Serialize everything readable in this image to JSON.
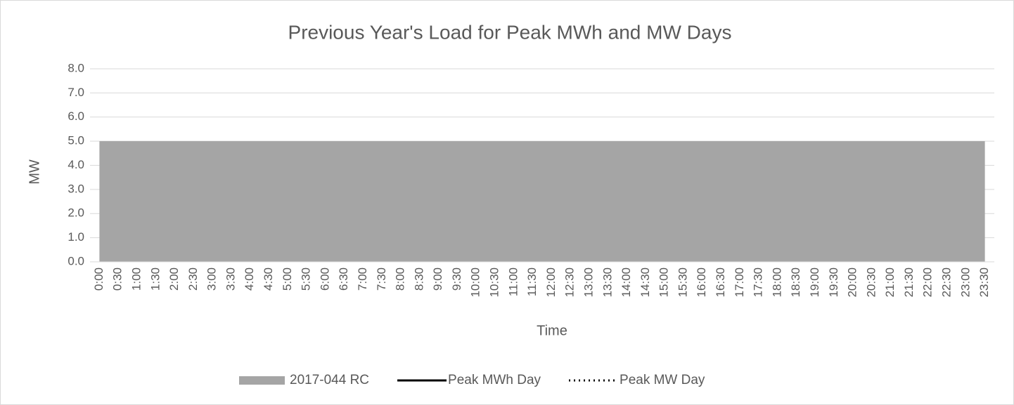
{
  "chart_data": {
    "type": "area",
    "title": "Previous Year's Load for Peak MWh and MW Days",
    "x_label": "Time",
    "y_label": "MW",
    "categories": [
      "0:00",
      "0:30",
      "1:00",
      "1:30",
      "2:00",
      "2:30",
      "3:00",
      "3:30",
      "4:00",
      "4:30",
      "5:00",
      "5:30",
      "6:00",
      "6:30",
      "7:00",
      "7:30",
      "8:00",
      "8:30",
      "9:00",
      "9:30",
      "10:00",
      "10:30",
      "11:00",
      "11:30",
      "12:00",
      "12:30",
      "13:00",
      "13:30",
      "14:00",
      "14:30",
      "15:00",
      "15:30",
      "16:00",
      "16:30",
      "17:00",
      "17:30",
      "18:00",
      "18:30",
      "19:00",
      "19:30",
      "20:00",
      "20:30",
      "21:00",
      "21:30",
      "22:00",
      "22:30",
      "23:00",
      "23:30"
    ],
    "series": [
      {
        "name": "2017-044 RC",
        "color": "#a5a5a5",
        "kind": "area",
        "values": [
          5,
          5,
          5,
          5,
          5,
          5,
          5,
          5,
          5,
          5,
          5,
          5,
          5,
          5,
          5,
          5,
          5,
          5,
          5,
          5,
          5,
          5,
          5,
          5,
          5,
          5,
          5,
          5,
          5,
          5,
          5,
          5,
          5,
          5,
          5,
          5,
          5,
          5,
          5,
          5,
          5,
          5,
          5,
          5,
          5,
          5,
          5,
          5
        ]
      },
      {
        "name": "Peak MWh Day",
        "color": "#000000",
        "kind": "line",
        "dash": "solid",
        "values": [
          null,
          null,
          null,
          null,
          null,
          null,
          null,
          null,
          null,
          null,
          null,
          null,
          null,
          null,
          null,
          null,
          null,
          null,
          null,
          null,
          null,
          null,
          null,
          null,
          null,
          null,
          null,
          null,
          null,
          null,
          null,
          null,
          null,
          null,
          null,
          null,
          null,
          null,
          null,
          null,
          null,
          null,
          null,
          null,
          null,
          null,
          null,
          null
        ]
      },
      {
        "name": "Peak MW Day",
        "color": "#000000",
        "kind": "line",
        "dash": "dotted",
        "values": [
          null,
          null,
          null,
          null,
          null,
          null,
          null,
          null,
          null,
          null,
          null,
          null,
          null,
          null,
          null,
          null,
          null,
          null,
          null,
          null,
          null,
          null,
          null,
          null,
          null,
          null,
          null,
          null,
          null,
          null,
          null,
          null,
          null,
          null,
          null,
          null,
          null,
          null,
          null,
          null,
          null,
          null,
          null,
          null,
          null,
          null,
          null,
          null
        ]
      }
    ],
    "ylim": [
      0,
      8
    ],
    "yticks": [
      {
        "value": 0,
        "label": "0.0"
      },
      {
        "value": 1,
        "label": "1.0"
      },
      {
        "value": 2,
        "label": "2.0"
      },
      {
        "value": 3,
        "label": "3.0"
      },
      {
        "value": 4,
        "label": "4.0"
      },
      {
        "value": 5,
        "label": "5.0"
      },
      {
        "value": 6,
        "label": "6.0"
      },
      {
        "value": 7,
        "label": "7.0"
      },
      {
        "value": 8,
        "label": "8.0"
      }
    ],
    "grid": true,
    "legend": "bottom"
  }
}
